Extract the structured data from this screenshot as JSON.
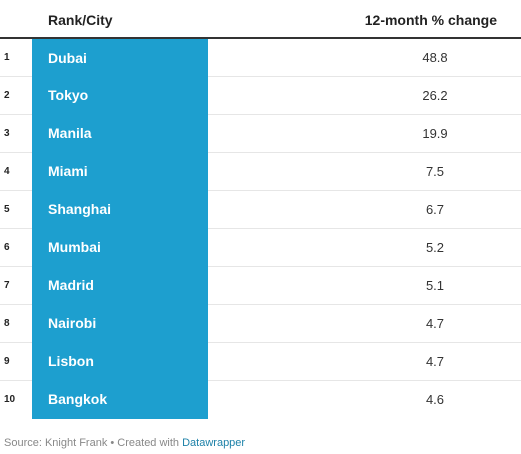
{
  "header": {
    "rank_city_label": "Rank/City",
    "change_label": "12-month % change"
  },
  "colors": {
    "highlight": "#1d9fcf",
    "text": "#333333",
    "link": "#1d81a8"
  },
  "rows": [
    {
      "rank": "1",
      "city": "Dubai",
      "change": "48.8"
    },
    {
      "rank": "2",
      "city": "Tokyo",
      "change": "26.2"
    },
    {
      "rank": "3",
      "city": "Manila",
      "change": "19.9"
    },
    {
      "rank": "4",
      "city": "Miami",
      "change": "7.5"
    },
    {
      "rank": "5",
      "city": "Shanghai",
      "change": "6.7"
    },
    {
      "rank": "6",
      "city": "Mumbai",
      "change": "5.2"
    },
    {
      "rank": "7",
      "city": "Madrid",
      "change": "5.1"
    },
    {
      "rank": "8",
      "city": "Nairobi",
      "change": "4.7"
    },
    {
      "rank": "9",
      "city": "Lisbon",
      "change": "4.7"
    },
    {
      "rank": "10",
      "city": "Bangkok",
      "change": "4.6"
    }
  ],
  "footer": {
    "source_text": "Source: Knight Frank • Created with ",
    "brand": "Datawrapper"
  },
  "chart_data": {
    "type": "table",
    "columns": [
      "Rank/City",
      "12-month % change"
    ],
    "rows": [
      {
        "rank": 1,
        "city": "Dubai",
        "change": 48.8
      },
      {
        "rank": 2,
        "city": "Tokyo",
        "change": 26.2
      },
      {
        "rank": 3,
        "city": "Manila",
        "change": 19.9
      },
      {
        "rank": 4,
        "city": "Miami",
        "change": 7.5
      },
      {
        "rank": 5,
        "city": "Shanghai",
        "change": 6.7
      },
      {
        "rank": 6,
        "city": "Mumbai",
        "change": 5.2
      },
      {
        "rank": 7,
        "city": "Madrid",
        "change": 5.1
      },
      {
        "rank": 8,
        "city": "Nairobi",
        "change": 4.7
      },
      {
        "rank": 9,
        "city": "Lisbon",
        "change": 4.7
      },
      {
        "rank": 10,
        "city": "Bangkok",
        "change": 4.6
      }
    ]
  }
}
